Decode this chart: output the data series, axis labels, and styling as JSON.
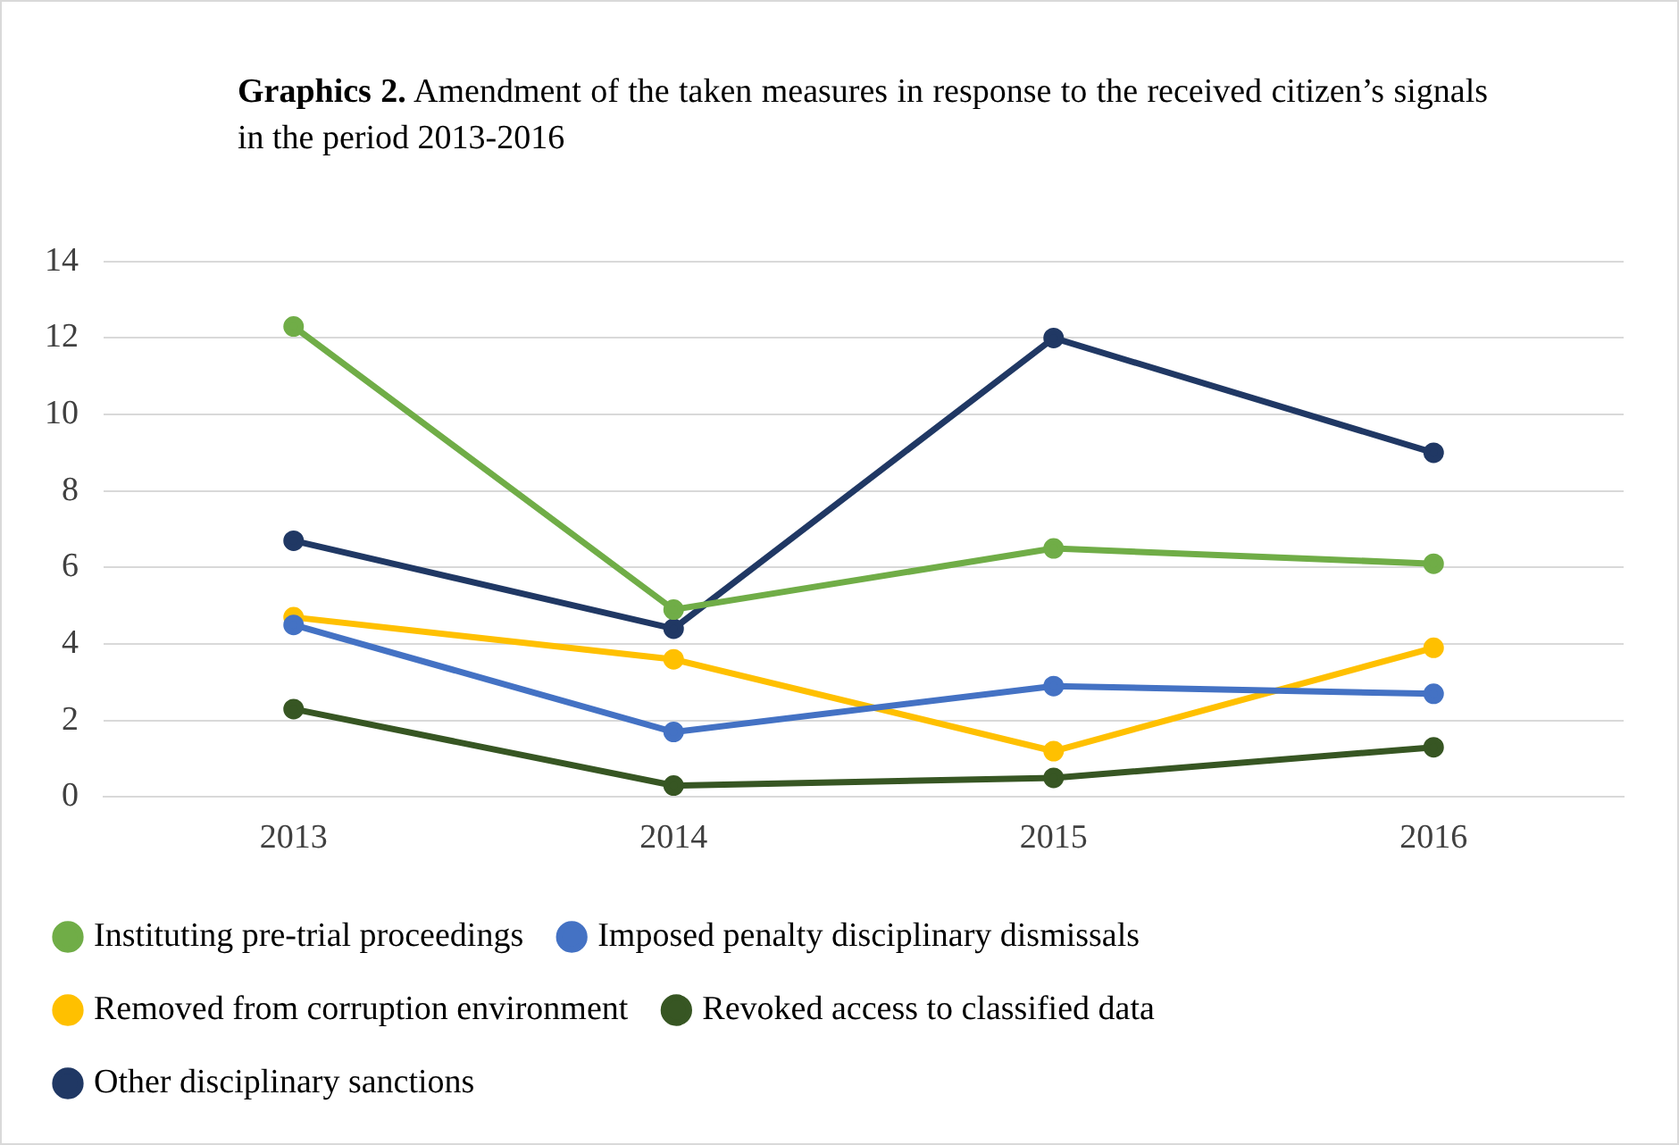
{
  "chart_data": {
    "type": "line",
    "title": "Graphics 2. Amendment  of the taken measures in response to the received citizen’s  signals  in the period 2013-2016",
    "categories": [
      "2013",
      "2014",
      "2015",
      "2016"
    ],
    "series": [
      {
        "name": "Instituting pre-trial proceedings",
        "color": "#70ad47",
        "values": [
          12.3,
          4.9,
          6.5,
          6.1
        ]
      },
      {
        "name": "Imposed penalty disciplinary dismissals",
        "color": "#4472c4",
        "values": [
          4.5,
          1.7,
          2.9,
          2.7
        ]
      },
      {
        "name": "Removed from corruption environment",
        "color": "#ffc000",
        "values": [
          4.7,
          3.6,
          1.2,
          3.9
        ]
      },
      {
        "name": "Revoked access to classified data",
        "color": "#375623",
        "values": [
          2.3,
          0.3,
          0.5,
          1.3
        ]
      },
      {
        "name": "Other disciplinary sanctions",
        "color": "#203864",
        "values": [
          6.7,
          4.4,
          12.0,
          9.0
        ]
      }
    ],
    "ylim": [
      0,
      14
    ],
    "yticks": [
      0,
      2,
      4,
      6,
      8,
      10,
      12,
      14
    ],
    "grid": "y",
    "legend": "bottom",
    "marker": "circle",
    "line_style": "solid"
  }
}
